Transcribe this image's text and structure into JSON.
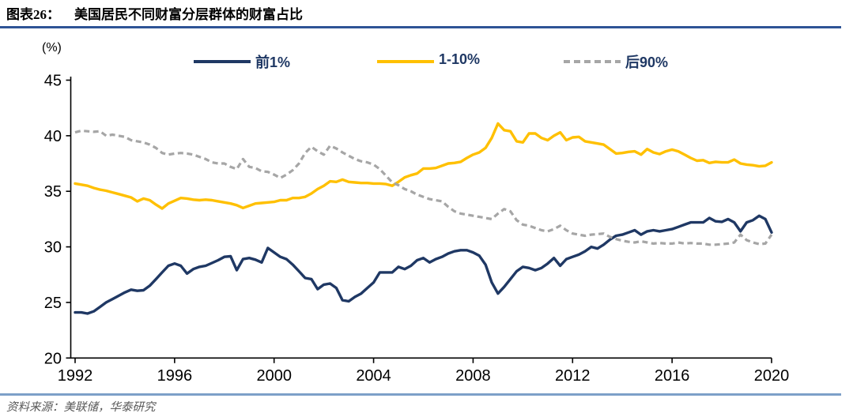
{
  "header": {
    "figure_label": "图表26：",
    "title": "美国居民不同财富分层群体的财富占比"
  },
  "footer": {
    "source": "资料来源：美联储，华泰研究"
  },
  "colors": {
    "top1_line": "#1f3864",
    "next9_line": "#ffc000",
    "bottom90_line": "#a6a6a6",
    "axis": "#000000",
    "title_rule": "#2e5496",
    "footer_rule": "#7da0c8"
  },
  "chart_data": {
    "type": "line",
    "unit_label": "(%)",
    "x_start": 1992,
    "x_step": 0.25,
    "x_ticks": [
      "1992",
      "1996",
      "2000",
      "2004",
      "2008",
      "2012",
      "2016",
      "2020"
    ],
    "y_ticks": [
      "20",
      "25",
      "30",
      "35",
      "40",
      "45"
    ],
    "ylim": [
      20,
      45
    ],
    "xlim": [
      1992,
      2020
    ],
    "grid": false,
    "legend_position": "top",
    "series": [
      {
        "name": "前1%",
        "style": "solid",
        "color": "#1f3864",
        "values": [
          24.1,
          24.1,
          24.0,
          24.2,
          24.6,
          25.0,
          25.3,
          25.6,
          25.9,
          26.15,
          26.05,
          26.1,
          26.5,
          27.1,
          27.7,
          28.3,
          28.5,
          28.3,
          27.6,
          28.0,
          28.2,
          28.3,
          28.55,
          28.8,
          29.1,
          29.15,
          27.9,
          28.9,
          29.0,
          28.85,
          28.6,
          29.9,
          29.5,
          29.1,
          28.9,
          28.4,
          27.8,
          27.2,
          27.1,
          26.2,
          26.6,
          26.7,
          26.3,
          25.2,
          25.1,
          25.5,
          25.8,
          26.3,
          26.8,
          27.7,
          27.7,
          27.7,
          28.2,
          28.0,
          28.3,
          28.8,
          29.0,
          28.6,
          28.9,
          29.1,
          29.4,
          29.6,
          29.7,
          29.7,
          29.5,
          29.2,
          28.4,
          26.8,
          25.8,
          26.4,
          27.1,
          27.8,
          28.2,
          28.1,
          27.9,
          28.1,
          28.5,
          29.0,
          28.3,
          28.9,
          29.1,
          29.3,
          29.6,
          30.0,
          29.85,
          30.2,
          30.65,
          31.0,
          31.1,
          31.3,
          31.5,
          31.1,
          31.4,
          31.5,
          31.4,
          31.5,
          31.6,
          31.8,
          32.0,
          32.2,
          32.2,
          32.2,
          32.6,
          32.3,
          32.25,
          32.5,
          32.2,
          31.4,
          32.2,
          32.4,
          32.8,
          32.5,
          31.3
        ]
      },
      {
        "name": "1-10%",
        "style": "solid",
        "color": "#ffc000",
        "values": [
          35.7,
          35.6,
          35.5,
          35.3,
          35.15,
          35.05,
          34.9,
          34.75,
          34.6,
          34.45,
          34.1,
          34.35,
          34.2,
          33.8,
          33.45,
          33.9,
          34.15,
          34.4,
          34.35,
          34.25,
          34.2,
          34.25,
          34.2,
          34.1,
          34.0,
          33.9,
          33.75,
          33.5,
          33.7,
          33.9,
          33.95,
          34.0,
          34.05,
          34.2,
          34.2,
          34.4,
          34.4,
          34.5,
          34.8,
          35.2,
          35.5,
          35.9,
          35.85,
          36.05,
          35.85,
          35.8,
          35.75,
          35.75,
          35.7,
          35.7,
          35.65,
          35.5,
          35.85,
          36.25,
          36.45,
          36.6,
          37.05,
          37.05,
          37.1,
          37.3,
          37.5,
          37.55,
          37.65,
          38.0,
          38.3,
          38.5,
          38.9,
          39.8,
          41.1,
          40.5,
          40.4,
          39.5,
          39.4,
          40.2,
          40.2,
          39.8,
          39.6,
          40.0,
          40.3,
          39.6,
          39.85,
          39.9,
          39.5,
          39.4,
          39.3,
          39.2,
          38.8,
          38.4,
          38.45,
          38.55,
          38.6,
          38.3,
          38.8,
          38.5,
          38.35,
          38.6,
          38.75,
          38.6,
          38.3,
          38.0,
          37.75,
          37.8,
          37.55,
          37.65,
          37.6,
          37.6,
          37.85,
          37.5,
          37.4,
          37.35,
          37.25,
          37.3,
          37.6
        ]
      },
      {
        "name": "后90%",
        "style": "dashed",
        "color": "#a6a6a6",
        "values": [
          40.3,
          40.45,
          40.4,
          40.35,
          40.4,
          40.0,
          40.1,
          40.0,
          39.9,
          39.6,
          39.5,
          39.4,
          39.2,
          38.9,
          38.45,
          38.3,
          38.4,
          38.45,
          38.4,
          38.3,
          38.1,
          37.9,
          37.6,
          37.5,
          37.5,
          37.2,
          37.0,
          37.9,
          37.2,
          37.1,
          36.8,
          36.75,
          36.5,
          36.2,
          36.5,
          36.9,
          37.5,
          38.45,
          39.0,
          38.6,
          38.3,
          39.1,
          38.85,
          38.5,
          38.2,
          37.9,
          37.7,
          37.6,
          37.4,
          37.0,
          36.4,
          35.8,
          35.55,
          35.2,
          35.0,
          34.7,
          34.5,
          34.3,
          34.2,
          34.1,
          33.6,
          33.2,
          33.0,
          32.9,
          32.8,
          32.7,
          32.6,
          32.5,
          33.0,
          33.4,
          33.2,
          32.4,
          32.0,
          31.9,
          31.7,
          31.5,
          31.4,
          31.6,
          31.9,
          31.5,
          31.2,
          31.1,
          31.0,
          31.1,
          31.15,
          31.2,
          30.9,
          30.7,
          30.55,
          30.45,
          30.4,
          30.5,
          30.4,
          30.3,
          30.35,
          30.3,
          30.3,
          30.4,
          30.3,
          30.35,
          30.3,
          30.3,
          30.2,
          30.2,
          30.25,
          30.3,
          30.4,
          31.1,
          30.6,
          30.4,
          30.25,
          30.3,
          31.1
        ]
      }
    ]
  }
}
